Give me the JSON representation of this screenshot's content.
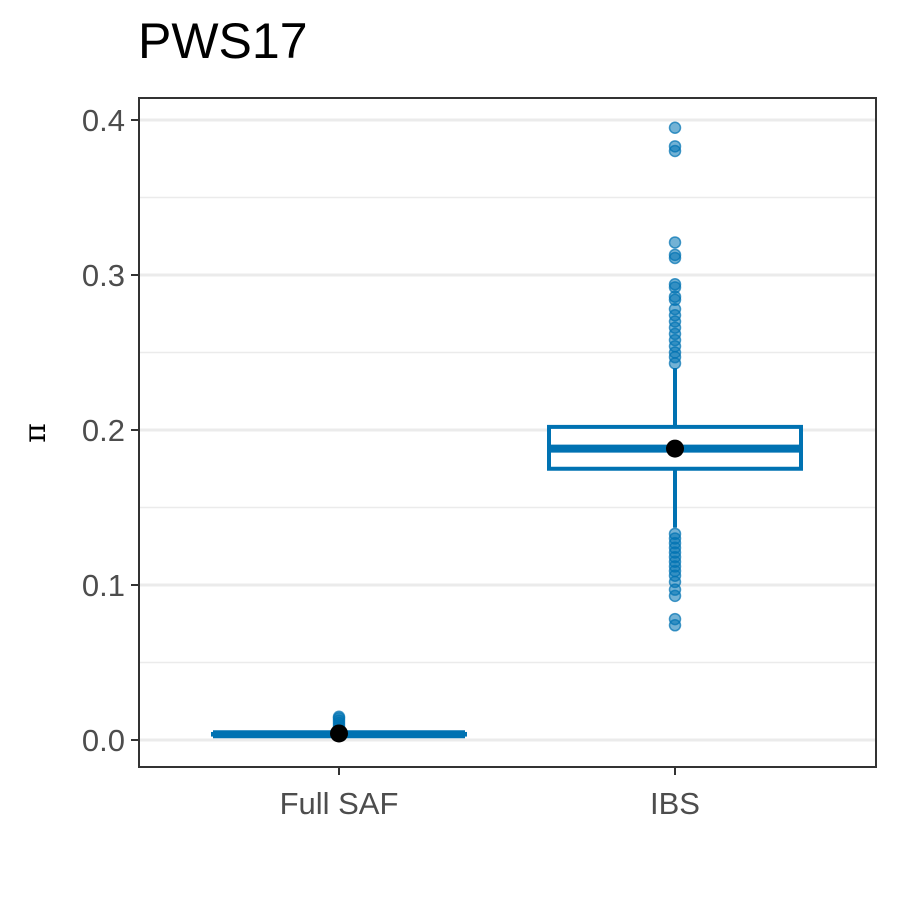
{
  "chart_data": {
    "type": "boxplot",
    "title": "PWS17",
    "xlabel": "",
    "ylabel": "π",
    "ylim": [
      -0.018,
      0.41
    ],
    "y_ticks": [
      0.0,
      0.1,
      0.2,
      0.3,
      0.4
    ],
    "y_tick_labels": [
      "0.0",
      "0.1",
      "0.2",
      "0.3",
      "0.4"
    ],
    "categories": [
      "Full SAF",
      "IBS"
    ],
    "grid": true,
    "legend": "none",
    "color": "#0072B2",
    "mean_color": "#000000",
    "boxes": [
      {
        "category": "Full SAF",
        "q1": 0.0035,
        "median": 0.0037,
        "q3": 0.0039,
        "whisker_low": 0.0028,
        "whisker_high": 0.0046,
        "mean": 0.0042,
        "outliers": [
          0.0065,
          0.008,
          0.0095,
          0.011,
          0.0125,
          0.014,
          0.015
        ]
      },
      {
        "category": "IBS",
        "q1": 0.175,
        "median": 0.188,
        "q3": 0.202,
        "whisker_low": 0.137,
        "whisker_high": 0.24,
        "mean": 0.188,
        "outliers": [
          0.074,
          0.078,
          0.093,
          0.097,
          0.102,
          0.106,
          0.109,
          0.112,
          0.115,
          0.118,
          0.121,
          0.124,
          0.127,
          0.13,
          0.133,
          0.243,
          0.247,
          0.25,
          0.254,
          0.258,
          0.262,
          0.266,
          0.27,
          0.274,
          0.278,
          0.284,
          0.286,
          0.292,
          0.294,
          0.311,
          0.313,
          0.321,
          0.38,
          0.383,
          0.395
        ]
      }
    ]
  }
}
